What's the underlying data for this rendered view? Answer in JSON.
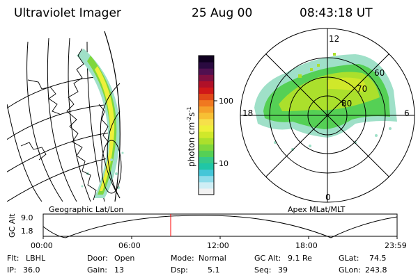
{
  "header": {
    "instrument": "Ultraviolet Imager",
    "date": "25 Aug 00",
    "time": "08:43:18 UT"
  },
  "left_panel": {
    "label": "Geographic Lat/Lon"
  },
  "right_panel": {
    "label": "Apex MLat/MLT",
    "mlt_labels": {
      "top": "12",
      "bottom": "0",
      "left": "18",
      "right": "6"
    },
    "lat_labels": [
      "60",
      "70",
      "80"
    ]
  },
  "colorbar": {
    "unit_label": "photon cm",
    "unit_exp1": "-2",
    "unit_s": "s",
    "unit_exp2": "-1",
    "ticks": [
      "100",
      "10"
    ],
    "colors": [
      "#f2f2f2",
      "#cfeef5",
      "#8fdcea",
      "#45c6d8",
      "#20c6a6",
      "#35c98a",
      "#55d055",
      "#7fd73c",
      "#abe02c",
      "#d0e82a",
      "#eef03a",
      "#f7e04a",
      "#f7c034",
      "#f5a02a",
      "#f07820",
      "#e04818",
      "#d01818",
      "#b01028",
      "#801040",
      "#501050",
      "#2a0a40",
      "#100020"
    ]
  },
  "altitude_plot": {
    "ylabel": "GC Alt",
    "y_ticks": [
      "9.0",
      "1.8"
    ],
    "x_ticks": [
      "00:00",
      "06:00",
      "12:00",
      "18:00",
      "23:59"
    ],
    "marker_color": "#ff0000"
  },
  "info": {
    "flt_label": "Flt:",
    "flt": "LBHL",
    "ip_label": "IP:",
    "ip": "36.0",
    "door_label": "Door:",
    "door": "Open",
    "gain_label": "Gain:",
    "gain": "13",
    "mode_label": "Mode:",
    "mode": "Normal",
    "dsp_label": "Dsp:",
    "dsp": "5.1",
    "gcalt_label": "GC Alt:",
    "gcalt": "9.1 Re",
    "seq_label": "Seq:",
    "seq": "39",
    "glat_label": "GLat:",
    "glat": "74.5",
    "glon_label": "GLon:",
    "glon": "243.8"
  }
}
